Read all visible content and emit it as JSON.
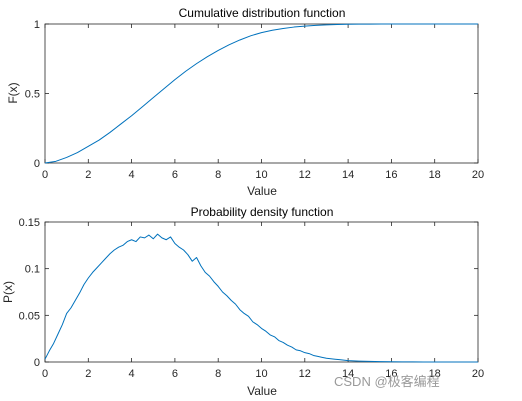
{
  "watermark": "CSDN @极客编程",
  "chart_data": [
    {
      "type": "line",
      "title": "Cumulative distribution function",
      "xlabel": "Value",
      "ylabel": "F(x)",
      "xlim": [
        0,
        20
      ],
      "ylim": [
        0,
        1
      ],
      "xticks": [
        "0",
        "2",
        "4",
        "6",
        "8",
        "10",
        "12",
        "14",
        "16",
        "18",
        "20"
      ],
      "yticks": [
        "0",
        "0.5",
        "1"
      ],
      "xtick_values": [
        0,
        2,
        4,
        6,
        8,
        10,
        12,
        14,
        16,
        18,
        20
      ],
      "ytick_values": [
        0,
        0.5,
        1
      ],
      "grid": false,
      "color": "#0072BD",
      "series": [
        {
          "x": [
            0,
            0.5,
            1,
            1.5,
            2,
            2.5,
            3,
            3.5,
            4,
            4.5,
            5,
            5.5,
            6,
            6.5,
            7,
            7.5,
            8,
            8.5,
            9,
            9.5,
            10,
            10.5,
            11,
            11.5,
            12,
            12.5,
            13,
            13.5,
            14,
            14.5,
            15,
            16,
            17,
            18,
            19,
            20
          ],
          "values": [
            0,
            0.012,
            0.04,
            0.075,
            0.12,
            0.165,
            0.22,
            0.28,
            0.34,
            0.405,
            0.47,
            0.535,
            0.6,
            0.66,
            0.715,
            0.765,
            0.81,
            0.85,
            0.885,
            0.915,
            0.938,
            0.955,
            0.968,
            0.978,
            0.985,
            0.99,
            0.994,
            0.996,
            0.998,
            0.999,
            0.9995,
            1,
            1,
            1,
            1,
            1
          ]
        }
      ]
    },
    {
      "type": "line",
      "title": "Probability density function",
      "xlabel": "Value",
      "ylabel": "P(x)",
      "xlim": [
        0,
        20
      ],
      "ylim": [
        0,
        0.15
      ],
      "xticks": [
        "0",
        "2",
        "4",
        "6",
        "8",
        "10",
        "12",
        "14",
        "16",
        "18",
        "20"
      ],
      "yticks": [
        "0",
        "0.05",
        "0.1",
        "0.15"
      ],
      "xtick_values": [
        0,
        2,
        4,
        6,
        8,
        10,
        12,
        14,
        16,
        18,
        20
      ],
      "ytick_values": [
        0,
        0.05,
        0.1,
        0.15
      ],
      "grid": false,
      "color": "#0072BD",
      "series": [
        {
          "x": [
            0,
            0.2,
            0.4,
            0.6,
            0.8,
            1,
            1.2,
            1.4,
            1.6,
            1.8,
            2,
            2.2,
            2.4,
            2.6,
            2.8,
            3,
            3.2,
            3.4,
            3.6,
            3.8,
            4,
            4.2,
            4.4,
            4.6,
            4.8,
            5,
            5.2,
            5.4,
            5.6,
            5.8,
            6,
            6.2,
            6.4,
            6.6,
            6.8,
            7,
            7.2,
            7.4,
            7.6,
            7.8,
            8,
            8.2,
            8.4,
            8.6,
            8.8,
            9,
            9.2,
            9.4,
            9.6,
            9.8,
            10,
            10.2,
            10.4,
            10.6,
            10.8,
            11,
            11.2,
            11.4,
            11.6,
            11.8,
            12,
            12.2,
            12.4,
            12.6,
            12.8,
            13,
            13.2,
            13.4,
            13.6,
            13.8,
            14,
            14.5,
            15,
            15.5,
            16,
            16.5,
            17,
            17.5,
            18,
            19,
            20
          ],
          "values": [
            0.003,
            0.012,
            0.02,
            0.03,
            0.04,
            0.052,
            0.058,
            0.066,
            0.074,
            0.083,
            0.09,
            0.096,
            0.101,
            0.106,
            0.111,
            0.116,
            0.12,
            0.123,
            0.125,
            0.129,
            0.131,
            0.129,
            0.134,
            0.133,
            0.136,
            0.132,
            0.137,
            0.133,
            0.131,
            0.134,
            0.127,
            0.123,
            0.12,
            0.115,
            0.108,
            0.112,
            0.103,
            0.096,
            0.092,
            0.086,
            0.081,
            0.075,
            0.071,
            0.066,
            0.062,
            0.056,
            0.052,
            0.049,
            0.043,
            0.04,
            0.036,
            0.033,
            0.029,
            0.027,
            0.023,
            0.021,
            0.018,
            0.016,
            0.013,
            0.012,
            0.01,
            0.009,
            0.007,
            0.006,
            0.005,
            0.004,
            0.0035,
            0.003,
            0.0025,
            0.002,
            0.0015,
            0.001,
            0.0007,
            0.0004,
            0.0002,
            0.0001,
            0.0001,
            0,
            0,
            0,
            0
          ]
        }
      ]
    }
  ]
}
